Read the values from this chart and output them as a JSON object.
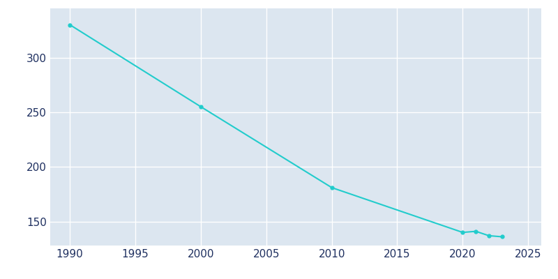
{
  "years": [
    1990,
    2000,
    2010,
    2020,
    2021,
    2022,
    2023
  ],
  "population": [
    330,
    255,
    181,
    140,
    141,
    137,
    136
  ],
  "line_color": "#22CCCC",
  "marker": "o",
  "marker_size": 3.5,
  "line_width": 1.5,
  "bg_color": "#ffffff",
  "plot_bg_color": "#dce6f0",
  "grid_color": "#ffffff",
  "xlim": [
    1988.5,
    2026
  ],
  "ylim": [
    128,
    345
  ],
  "xticks": [
    1990,
    1995,
    2000,
    2005,
    2010,
    2015,
    2020,
    2025
  ],
  "yticks": [
    150,
    200,
    250,
    300
  ],
  "tick_color": "#1f3060",
  "tick_fontsize": 11
}
